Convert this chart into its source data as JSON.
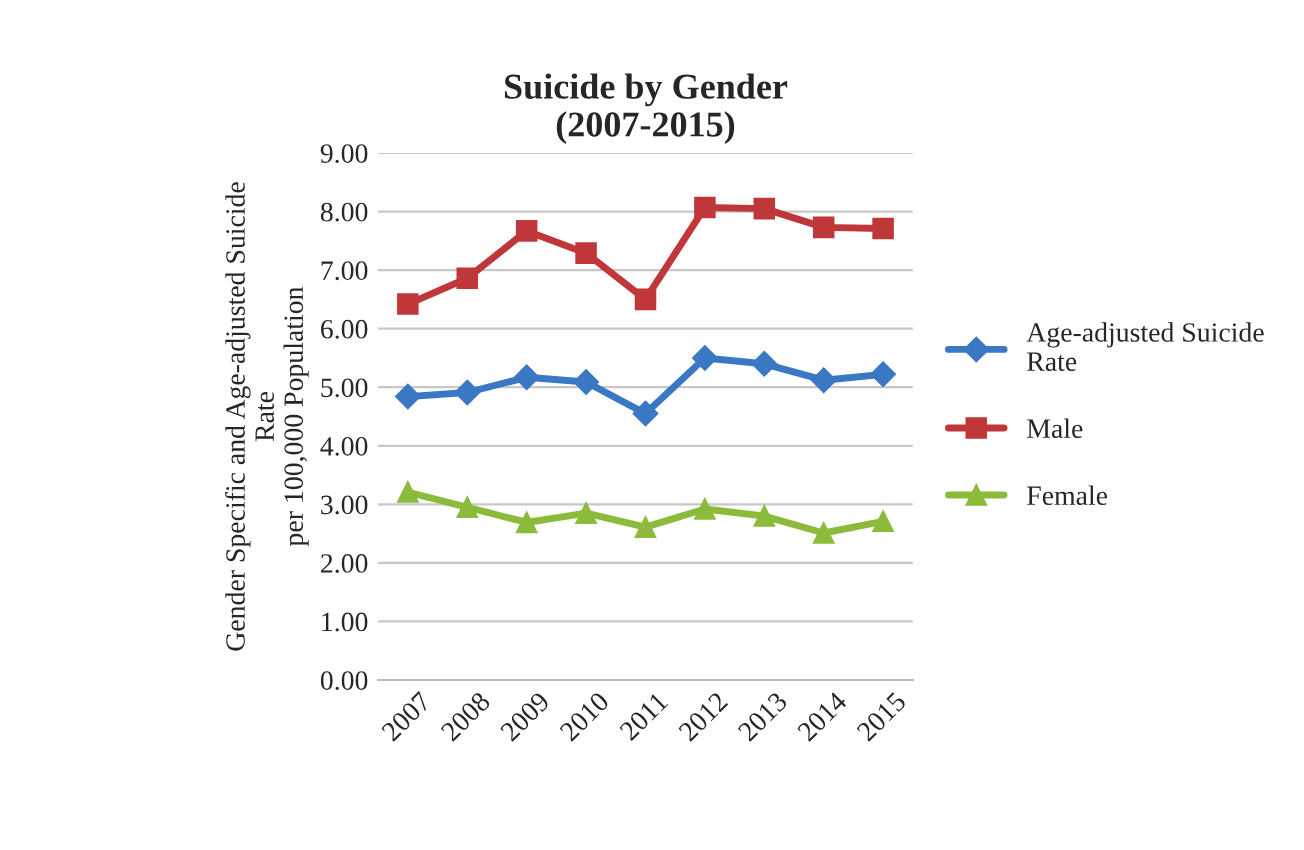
{
  "chart_data": {
    "type": "line",
    "title": "Suicide by Gender\n(2007-2015)",
    "ylabel": "Gender Specific and Age-adjusted Suicide\nRate\nper 100,000 Population",
    "categories": [
      "2007",
      "2008",
      "2009",
      "2010",
      "2011",
      "2012",
      "2013",
      "2014",
      "2015"
    ],
    "series": [
      {
        "name": "Age-adjusted Suicide\nRate",
        "color": "#3a78c4",
        "marker": "diamond",
        "values": [
          4.84,
          4.91,
          5.17,
          5.09,
          4.55,
          5.5,
          5.4,
          5.12,
          5.22
        ]
      },
      {
        "name": "Male",
        "color": "#c0373a",
        "marker": "square",
        "values": [
          6.42,
          6.86,
          7.67,
          7.29,
          6.5,
          8.07,
          8.05,
          7.73,
          7.71
        ]
      },
      {
        "name": "Female",
        "color": "#8cbb3c",
        "marker": "triangle",
        "values": [
          3.21,
          2.95,
          2.69,
          2.85,
          2.61,
          2.92,
          2.8,
          2.51,
          2.71
        ]
      }
    ],
    "ylim": [
      0,
      9
    ],
    "yticks": [
      {
        "value": 0,
        "label": "0.00"
      },
      {
        "value": 1,
        "label": "1.00"
      },
      {
        "value": 2,
        "label": "2.00"
      },
      {
        "value": 3,
        "label": "3.00"
      },
      {
        "value": 4,
        "label": "4.00"
      },
      {
        "value": 5,
        "label": "5.00"
      },
      {
        "value": 6,
        "label": "6.00"
      },
      {
        "value": 7,
        "label": "7.00"
      },
      {
        "value": 8,
        "label": "8.00"
      },
      {
        "value": 9,
        "label": "9.00"
      }
    ],
    "grid": "y",
    "legend": "right",
    "line_style": "solid"
  }
}
